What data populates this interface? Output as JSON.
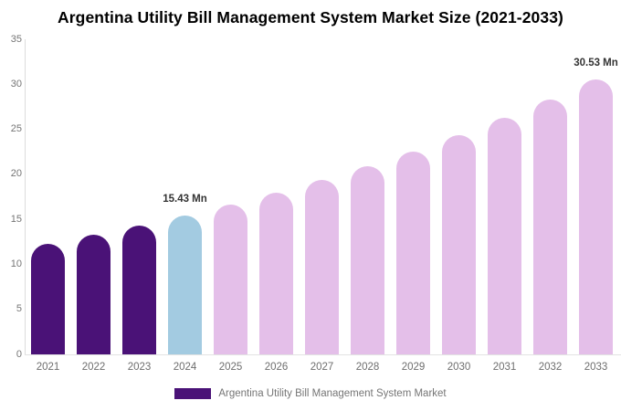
{
  "title": "Argentina Utility Bill Management System Market Size (2021-2033)",
  "legend": {
    "label": "Argentina Utility Bill Management System Market",
    "swatch_color": "#4A1277"
  },
  "colors": {
    "historical_bar": "#4A1277",
    "highlight_bar": "#A3CBE1",
    "forecast_bar": "#E4BFE9",
    "axis_line": "#DCDCDC",
    "tick_text": "#757575",
    "x_label_text": "#6E6E6E",
    "data_label_text": "#333333",
    "title_text": "#000000",
    "background": "#FFFFFF"
  },
  "chart_data": {
    "type": "bar",
    "title": "Argentina Utility Bill Management System Market Size (2021-2033)",
    "xlabel": "",
    "ylabel": "",
    "unit": "Mn",
    "categories": [
      "2021",
      "2022",
      "2023",
      "2024",
      "2025",
      "2026",
      "2027",
      "2028",
      "2029",
      "2030",
      "2031",
      "2032",
      "2033"
    ],
    "values": [
      12.28,
      13.26,
      14.3,
      15.43,
      16.65,
      17.96,
      19.38,
      20.9,
      22.55,
      24.33,
      26.24,
      28.31,
      30.53
    ],
    "bar_roles": [
      "historical",
      "historical",
      "historical",
      "highlight",
      "forecast",
      "forecast",
      "forecast",
      "forecast",
      "forecast",
      "forecast",
      "forecast",
      "forecast",
      "forecast"
    ],
    "annotations": [
      {
        "category": "2024",
        "text": "15.43 Mn"
      },
      {
        "category": "2033",
        "text": "30.53 Mn"
      }
    ],
    "ylim": [
      0,
      35
    ],
    "yticks": [
      0,
      5,
      10,
      15,
      20,
      25,
      30,
      35
    ],
    "grid": false,
    "legend_position": "bottom-center",
    "legend_entries": [
      "Argentina Utility Bill Management System Market"
    ]
  }
}
